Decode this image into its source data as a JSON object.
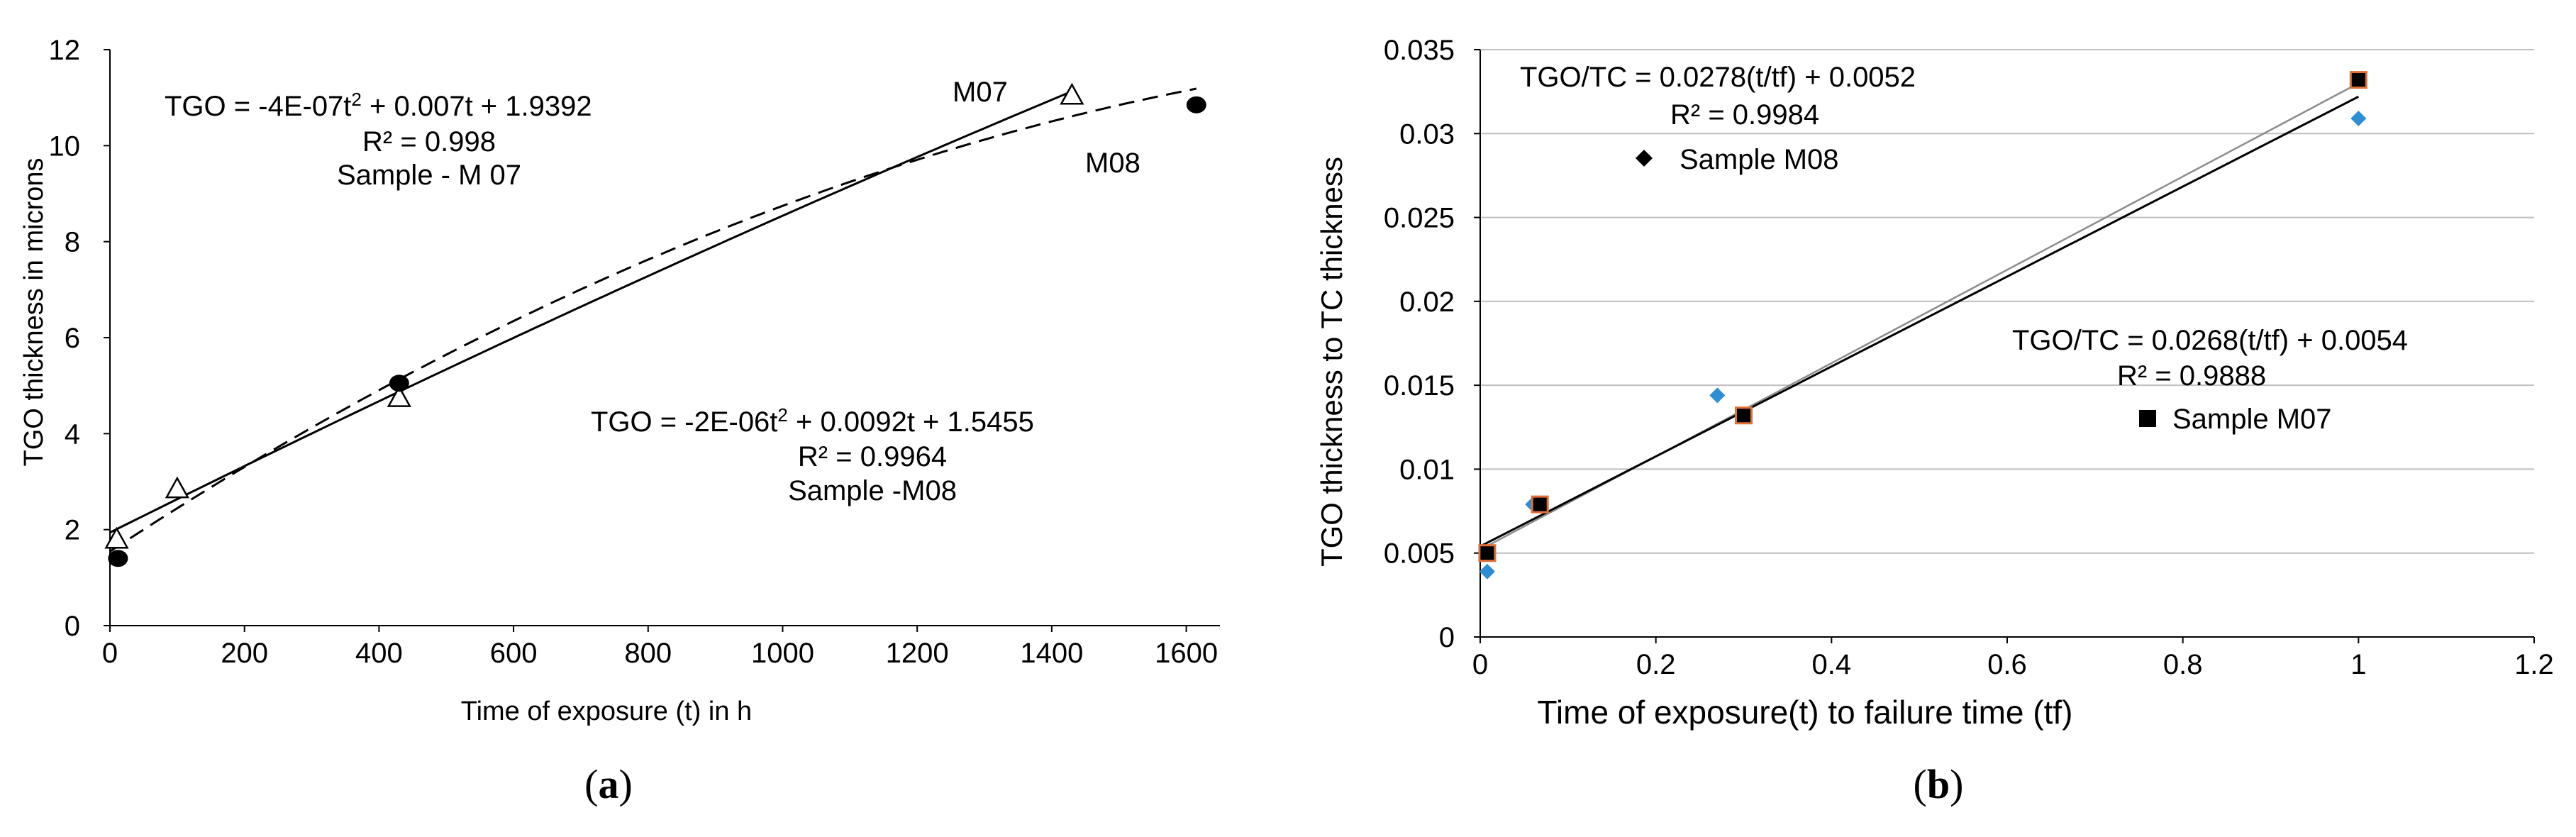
{
  "colors": {
    "axis": "#000000",
    "grid": "#bfbfbf",
    "fit_m07_b": "#000000",
    "fit_m08_b": "#8c8c8c",
    "m08_marker_b": "#2e8ed1",
    "m07_marker_fill_b": "#000000",
    "m07_marker_edge_b": "#e0703a"
  },
  "chart_data": [
    {
      "type": "scatter",
      "panel_label_open": "(",
      "panel_label_letter": "a",
      "panel_label_close": ")",
      "xlabel": "Time of exposure (t) in h",
      "ylabel": "TGO thickness in microns",
      "xlim": [
        0,
        1650
      ],
      "ylim": [
        0,
        12
      ],
      "x_ticks": [
        0,
        200,
        400,
        600,
        800,
        1000,
        1200,
        1400,
        1600
      ],
      "y_ticks": [
        0,
        2,
        4,
        6,
        8,
        10,
        12
      ],
      "grid": false,
      "series": [
        {
          "name": "M07",
          "marker": "open-triangle",
          "x": [
            10,
            100,
            430,
            1430
          ],
          "y": [
            1.8,
            2.85,
            4.75,
            11.05
          ],
          "fit": {
            "kind": "poly2",
            "a": -4e-07,
            "b": 0.007,
            "c": 1.9392,
            "x_range": [
              0,
              1430
            ],
            "dash": "solid"
          }
        },
        {
          "name": "M08",
          "marker": "filled-circle",
          "x": [
            12,
            430,
            1615
          ],
          "y": [
            1.4,
            5.05,
            10.85
          ],
          "fit": {
            "kind": "poly2",
            "a": -2e-06,
            "b": 0.0092,
            "c": 1.5455,
            "x_range": [
              0,
              1615
            ],
            "dash": "dashed"
          }
        }
      ],
      "annotations": [
        {
          "name": "eq-m07",
          "lines": [
            "R² = 0.998",
            "Sample - M 07"
          ]
        },
        {
          "name": "eq-m08",
          "lines": [
            "R² = 0.9964",
            "Sample -M08"
          ]
        }
      ],
      "eq_m07_parts": [
        "TGO = -4E-07t",
        "2",
        " + 0.007t + 1.9392"
      ],
      "eq_m08_parts": [
        "TGO = -2E-06t",
        "2",
        " + 0.0092t + 1.5455"
      ],
      "curve_labels": [
        "M07",
        "M08"
      ]
    },
    {
      "type": "scatter",
      "panel_label_open": "(",
      "panel_label_letter": "b",
      "panel_label_close": ")",
      "xlabel": "Time of exposure(t)  to failure time (tf)",
      "ylabel": "TGO thickness to TC thickness",
      "xlim": [
        0,
        1.2
      ],
      "ylim": [
        0,
        0.035
      ],
      "x_tick_labels": [
        "0",
        "0.2",
        "0.4",
        "0.6",
        "0.8",
        "1",
        "1.2"
      ],
      "x_ticks": [
        0,
        0.2,
        0.4,
        0.6,
        0.8,
        1,
        1.2
      ],
      "y_tick_labels": [
        "0",
        "0.005",
        "0.01",
        "0.015",
        "0.02",
        "0.025",
        "0.03",
        "0.035"
      ],
      "y_ticks": [
        0,
        0.005,
        0.01,
        0.015,
        0.02,
        0.025,
        0.03,
        0.035
      ],
      "grid": true,
      "series": [
        {
          "name": "Sample M08",
          "marker": "diamond",
          "x": [
            0.008,
            0.06,
            0.27,
            1.0
          ],
          "y": [
            0.0039,
            0.0079,
            0.0144,
            0.0309
          ],
          "fit": {
            "kind": "linear",
            "m": 0.0278,
            "c": 0.0052,
            "x_range": [
              0,
              1.0
            ]
          }
        },
        {
          "name": "Sample M07",
          "marker": "square",
          "x": [
            0.008,
            0.068,
            0.3,
            1.0
          ],
          "y": [
            0.005,
            0.0079,
            0.0132,
            0.0332
          ],
          "fit": {
            "kind": "linear",
            "m": 0.0268,
            "c": 0.0054,
            "x_range": [
              0,
              1.0
            ]
          }
        }
      ],
      "annotations": [
        {
          "name": "eq-m08",
          "lines": [
            "TGO/TC = 0.0278(t/tf)  + 0.0052",
            "R² = 0.9984"
          ]
        },
        {
          "name": "eq-m07",
          "lines": [
            "TGO/TC = 0.0268(t/tf)  + 0.0054",
            "R² = 0.9888"
          ]
        }
      ],
      "legend": [
        "Sample M08",
        "Sample M07"
      ]
    }
  ]
}
